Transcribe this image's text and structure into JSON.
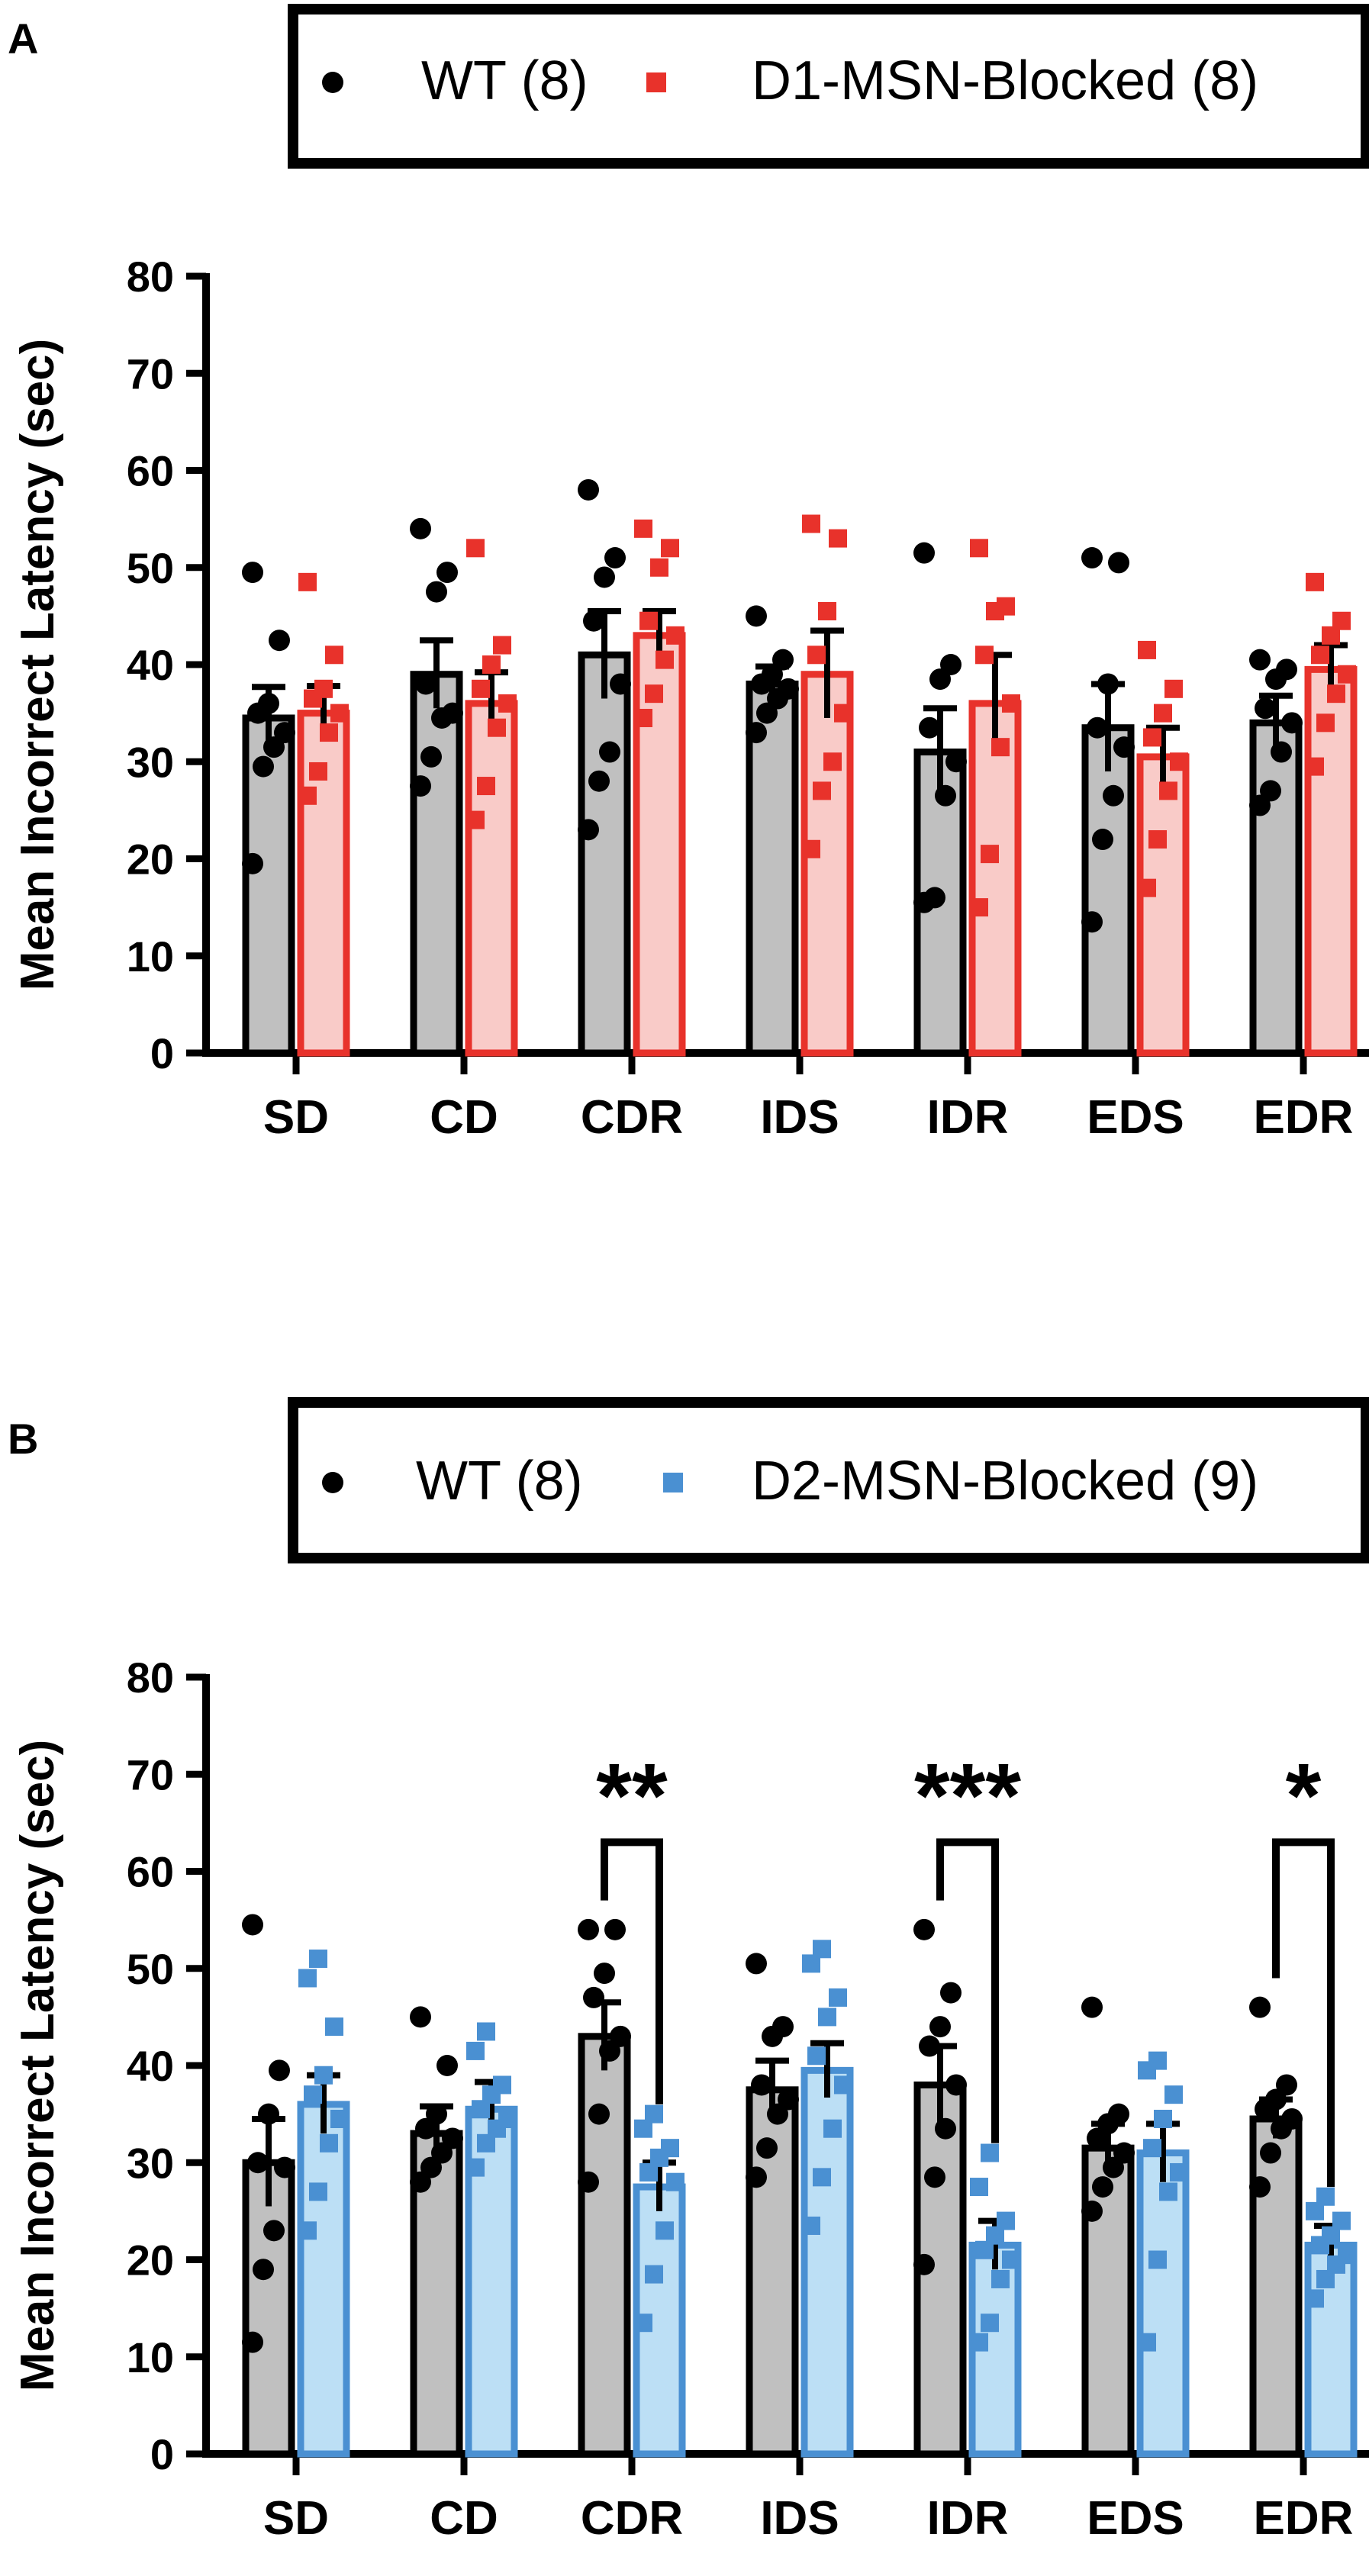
{
  "chart_data": [
    {
      "panel_label": "A",
      "type": "bar",
      "ylabel": "Mean Incorrect Latency (sec)",
      "xlabel": "",
      "ylim": [
        0,
        80
      ],
      "yticks": [
        "0",
        "10",
        "20",
        "30",
        "40",
        "50",
        "60",
        "70",
        "80"
      ],
      "categories": [
        "SD",
        "CD",
        "CDR",
        "IDS",
        "IDR",
        "EDS",
        "EDR"
      ],
      "legend_placement": "top",
      "series": [
        {
          "name": "WT (8)",
          "marker": "circle",
          "bar_color": "#c0c0c0",
          "point_color": "#000000",
          "edge_color": "#000000",
          "means": [
            34.5,
            39.0,
            41.0,
            38.0,
            31.0,
            33.5,
            34.0
          ],
          "sem": [
            3.2,
            3.5,
            4.5,
            1.8,
            4.5,
            4.5,
            2.8
          ],
          "points": [
            [
              19.5,
              29.5,
              31.5,
              33.0,
              35.0,
              36.0,
              42.5,
              49.5
            ],
            [
              27.5,
              30.5,
              34.5,
              35.0,
              38.0,
              47.5,
              49.5,
              54.0
            ],
            [
              23.0,
              28.0,
              31.0,
              38.0,
              44.5,
              49.0,
              51.0,
              58.0
            ],
            [
              33.0,
              35.0,
              36.5,
              37.5,
              38.0,
              39.0,
              40.5,
              45.0
            ],
            [
              15.5,
              16.0,
              26.5,
              30.0,
              33.5,
              38.5,
              40.0,
              51.5
            ],
            [
              13.5,
              22.0,
              26.5,
              31.5,
              33.5,
              38.0,
              50.5,
              51.0
            ],
            [
              25.5,
              27.0,
              31.0,
              34.0,
              35.5,
              38.5,
              39.5,
              40.5
            ]
          ]
        },
        {
          "name": "D1-MSN-Blocked (8)",
          "marker": "square",
          "bar_color": "#f9cbc8",
          "point_color": "#e8322b",
          "edge_color": "#e8322b",
          "means": [
            35.0,
            36.0,
            43.0,
            39.0,
            36.0,
            30.5,
            39.5
          ],
          "sem": [
            2.8,
            3.2,
            2.5,
            4.5,
            5.0,
            3.0,
            2.5
          ],
          "points": [
            [
              26.5,
              29.0,
              33.0,
              35.0,
              36.5,
              37.5,
              41.0,
              48.5
            ],
            [
              24.0,
              27.5,
              33.5,
              36.0,
              37.5,
              40.0,
              42.0,
              52.0
            ],
            [
              34.5,
              37.0,
              40.5,
              43.0,
              44.5,
              50.0,
              52.0,
              54.0
            ],
            [
              21.0,
              27.0,
              30.0,
              35.0,
              41.0,
              45.5,
              53.0,
              54.5
            ],
            [
              15.0,
              20.5,
              31.5,
              36.0,
              41.0,
              45.5,
              46.0,
              52.0
            ],
            [
              17.0,
              22.0,
              27.0,
              30.0,
              32.5,
              35.0,
              37.5,
              41.5
            ],
            [
              29.5,
              34.0,
              37.0,
              39.0,
              41.0,
              43.0,
              44.5,
              48.5
            ]
          ]
        }
      ],
      "significance": []
    },
    {
      "panel_label": "B",
      "type": "bar",
      "ylabel": "Mean Incorrect Latency (sec)",
      "xlabel": "",
      "ylim": [
        0,
        80
      ],
      "yticks": [
        "0",
        "10",
        "20",
        "30",
        "40",
        "50",
        "60",
        "70",
        "80"
      ],
      "categories": [
        "SD",
        "CD",
        "CDR",
        "IDS",
        "IDR",
        "EDS",
        "EDR"
      ],
      "legend_placement": "top",
      "series": [
        {
          "name": "WT (8)",
          "marker": "circle",
          "bar_color": "#c0c0c0",
          "point_color": "#000000",
          "edge_color": "#000000",
          "means": [
            30.0,
            33.0,
            43.0,
            37.5,
            38.0,
            31.5,
            34.5
          ],
          "sem": [
            4.5,
            2.8,
            3.5,
            3.0,
            4.0,
            2.5,
            2.0
          ],
          "points": [
            [
              11.5,
              19.0,
              23.0,
              29.5,
              30.0,
              35.0,
              39.5,
              54.5
            ],
            [
              28.0,
              29.5,
              31.0,
              32.5,
              33.5,
              35.0,
              40.0,
              45.0
            ],
            [
              28.0,
              35.0,
              41.5,
              43.0,
              47.0,
              49.5,
              54.0,
              54.0
            ],
            [
              28.5,
              31.5,
              35.0,
              36.5,
              38.0,
              43.0,
              44.0,
              50.5
            ],
            [
              19.5,
              28.5,
              33.5,
              38.0,
              42.0,
              44.0,
              47.5,
              54.0
            ],
            [
              25.0,
              27.5,
              29.5,
              31.0,
              32.5,
              34.0,
              35.0,
              46.0
            ],
            [
              27.5,
              31.0,
              33.5,
              34.5,
              35.5,
              36.5,
              38.0,
              46.0
            ]
          ]
        },
        {
          "name": "D2-MSN-Blocked (9)",
          "marker": "square",
          "bar_color": "#bcdff5",
          "point_color": "#4a90d2",
          "edge_color": "#4a90d2",
          "means": [
            36.0,
            35.5,
            27.5,
            39.5,
            21.5,
            31.0,
            21.5
          ],
          "sem": [
            3.0,
            2.8,
            2.5,
            2.8,
            2.5,
            3.0,
            2.0
          ],
          "points": [
            [
              23.0,
              27.0,
              32.0,
              34.5,
              37.0,
              39.0,
              44.0,
              49.0,
              51.0
            ],
            [
              29.5,
              32.0,
              33.5,
              34.5,
              35.5,
              37.0,
              38.0,
              41.5,
              43.5
            ],
            [
              13.5,
              18.5,
              23.0,
              28.0,
              29.0,
              30.5,
              31.5,
              33.5,
              35.0
            ],
            [
              23.5,
              28.5,
              33.5,
              38.0,
              41.0,
              45.0,
              47.0,
              50.5,
              52.0
            ],
            [
              11.5,
              13.5,
              18.0,
              20.0,
              21.0,
              22.5,
              24.0,
              27.5,
              31.0
            ],
            [
              11.5,
              20.0,
              27.0,
              29.0,
              31.5,
              34.5,
              37.0,
              39.5,
              40.5
            ],
            [
              16.0,
              18.0,
              19.5,
              20.5,
              21.5,
              22.5,
              24.0,
              25.0,
              26.5
            ]
          ]
        }
      ],
      "significance": [
        {
          "category": "CDR",
          "label": "**"
        },
        {
          "category": "IDR",
          "label": "***"
        },
        {
          "category": "EDR",
          "label": "*"
        }
      ]
    }
  ]
}
